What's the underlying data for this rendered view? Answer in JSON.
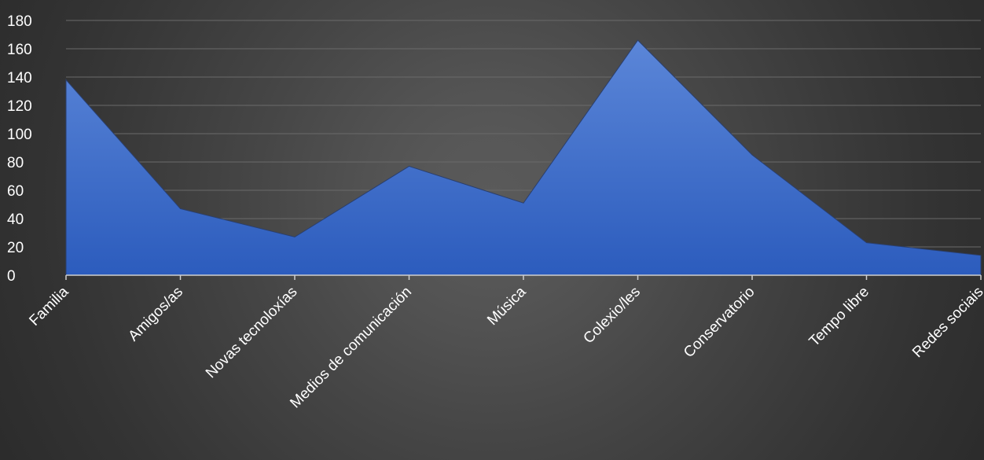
{
  "chart_data": {
    "type": "area",
    "title": "",
    "xlabel": "",
    "ylabel": "",
    "categories": [
      "Familia",
      "Amigos/as",
      "Novas tecnoloxías",
      "Medios de comunicación",
      "Música",
      "Colexio/les",
      "Conservatorio",
      "Tempo libre",
      "Redes sociais"
    ],
    "series": [
      {
        "values": [
          138,
          47,
          27,
          77,
          51,
          166,
          85,
          23,
          14
        ],
        "color": "#3b6fd0"
      }
    ],
    "ylim": [
      0,
      180
    ],
    "yticks": [
      "0",
      "20",
      "40",
      "60",
      "80",
      "100",
      "120",
      "140",
      "160",
      "180"
    ],
    "grid": true,
    "legend": "none",
    "colors": {
      "area_top": "#5b86d8",
      "area_bottom": "#2c5cbd",
      "gridline": "#6a6a6a",
      "axis": "#cfcfcf",
      "text": "#ffffff"
    }
  }
}
